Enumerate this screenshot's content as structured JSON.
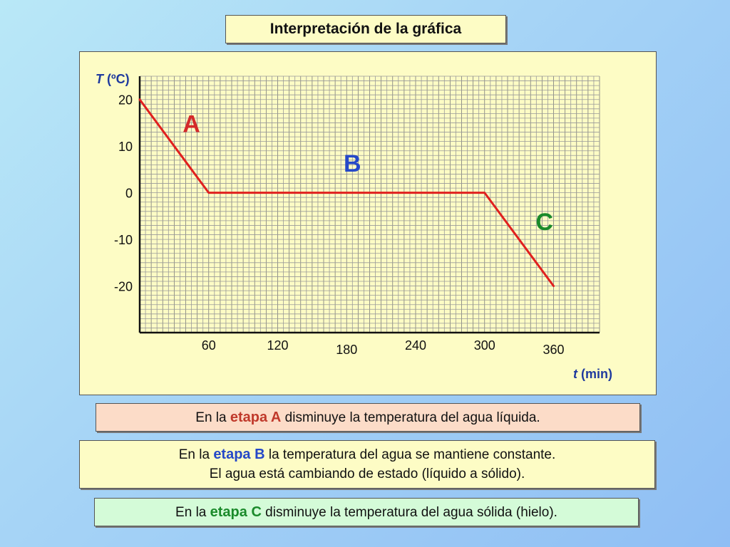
{
  "title": "Interpretación de la gráfica",
  "chart_data": {
    "type": "line",
    "title": "",
    "ylabel_var": "T",
    "ylabel_unit": "(ºC)",
    "xlabel_var": "t",
    "xlabel_unit": "(min)",
    "x_ticks": [
      60,
      120,
      180,
      240,
      300,
      360
    ],
    "y_ticks": [
      20,
      10,
      0,
      -10,
      -20
    ],
    "xlim": [
      0,
      400
    ],
    "ylim": [
      -30,
      25
    ],
    "grid": true,
    "series": [
      {
        "values": [
          {
            "x": 0,
            "y": 20
          },
          {
            "x": 60,
            "y": 0
          },
          {
            "x": 300,
            "y": 0
          },
          {
            "x": 360,
            "y": -20
          }
        ]
      }
    ],
    "annotations": [
      {
        "text": "A",
        "x": 45,
        "y": 13,
        "color": "#d42a2a"
      },
      {
        "text": "B",
        "x": 185,
        "y": 4.5,
        "color": "#2548c8"
      },
      {
        "text": "C",
        "x": 352,
        "y": -8,
        "color": "#1a8a2a"
      }
    ],
    "line_color": "#e0201e"
  },
  "info": {
    "a": {
      "pre": "En la",
      "stage": "etapa A",
      "post": "disminuye la temperatura del agua líquida."
    },
    "b": {
      "pre": "En la",
      "stage": "etapa B",
      "post": "la temperatura del agua se mantiene constante.",
      "line2": "El agua está cambiando de estado (líquido a sólido)."
    },
    "c": {
      "pre": "En la",
      "stage": "etapa C",
      "post": "disminuye la temperatura del agua sólida (hielo)."
    }
  }
}
